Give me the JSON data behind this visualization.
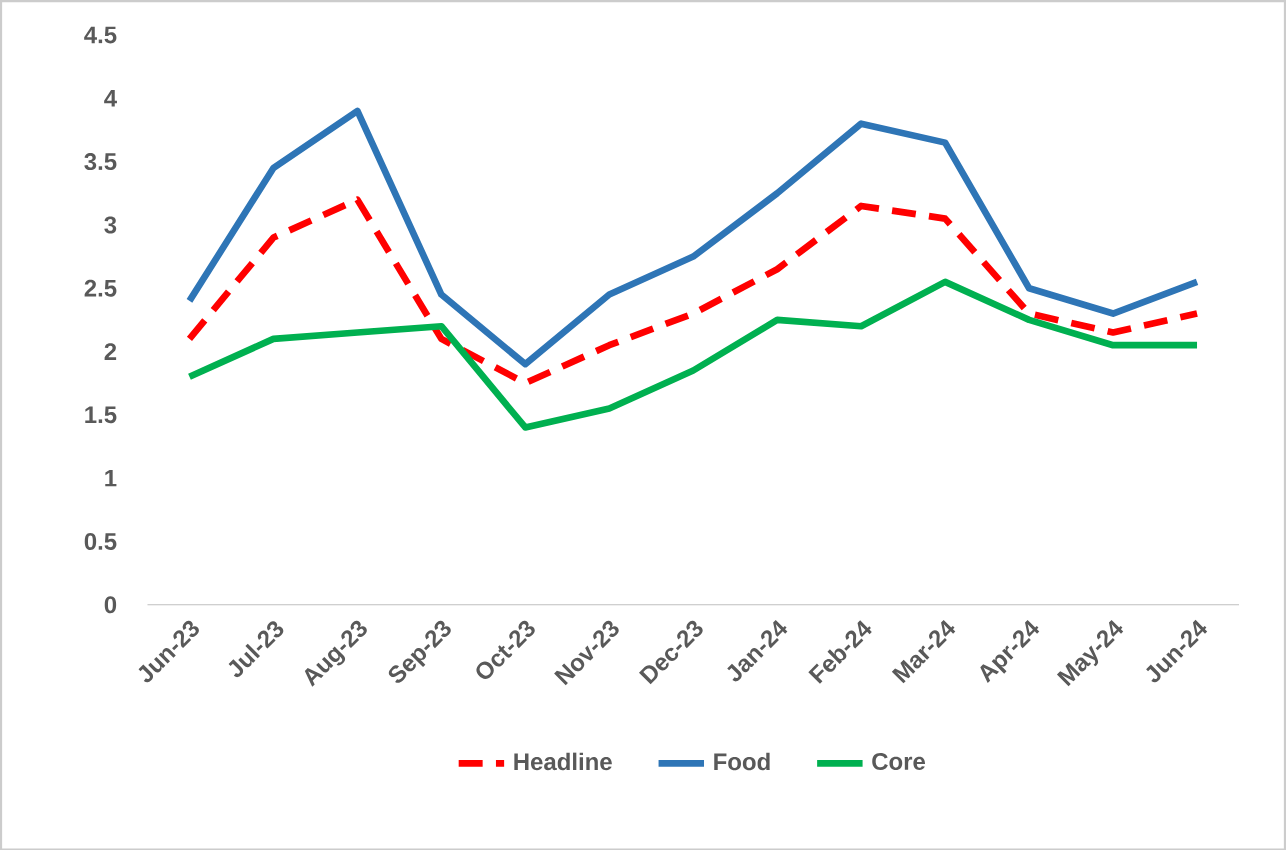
{
  "chart_data": {
    "type": "line",
    "categories": [
      "Jun-23",
      "Jul-23",
      "Aug-23",
      "Sep-23",
      "Oct-23",
      "Nov-23",
      "Dec-23",
      "Jan-24",
      "Feb-24",
      "Mar-24",
      "Apr-24",
      "May-24",
      "Jun-24"
    ],
    "series": [
      {
        "name": "Headline",
        "color": "#ff0000",
        "line_style": "dashed",
        "values": [
          2.1,
          2.9,
          3.2,
          2.1,
          1.75,
          2.05,
          2.3,
          2.65,
          3.15,
          3.05,
          2.3,
          2.15,
          2.3
        ]
      },
      {
        "name": "Food",
        "color": "#2e75b6",
        "line_style": "solid",
        "values": [
          2.4,
          3.45,
          3.9,
          2.45,
          1.9,
          2.45,
          2.75,
          3.25,
          3.8,
          3.65,
          2.5,
          2.3,
          2.55
        ]
      },
      {
        "name": "Core",
        "color": "#00b050",
        "line_style": "solid",
        "values": [
          1.8,
          2.1,
          2.15,
          2.2,
          1.4,
          1.55,
          1.85,
          2.25,
          2.2,
          2.55,
          2.25,
          2.05,
          2.05
        ]
      }
    ],
    "ylim": [
      0,
      4.5
    ],
    "yticks": [
      0,
      0.5,
      1,
      1.5,
      2,
      2.5,
      3,
      3.5,
      4,
      4.5
    ],
    "grid": false,
    "legend": "bottom",
    "marker": "none"
  }
}
